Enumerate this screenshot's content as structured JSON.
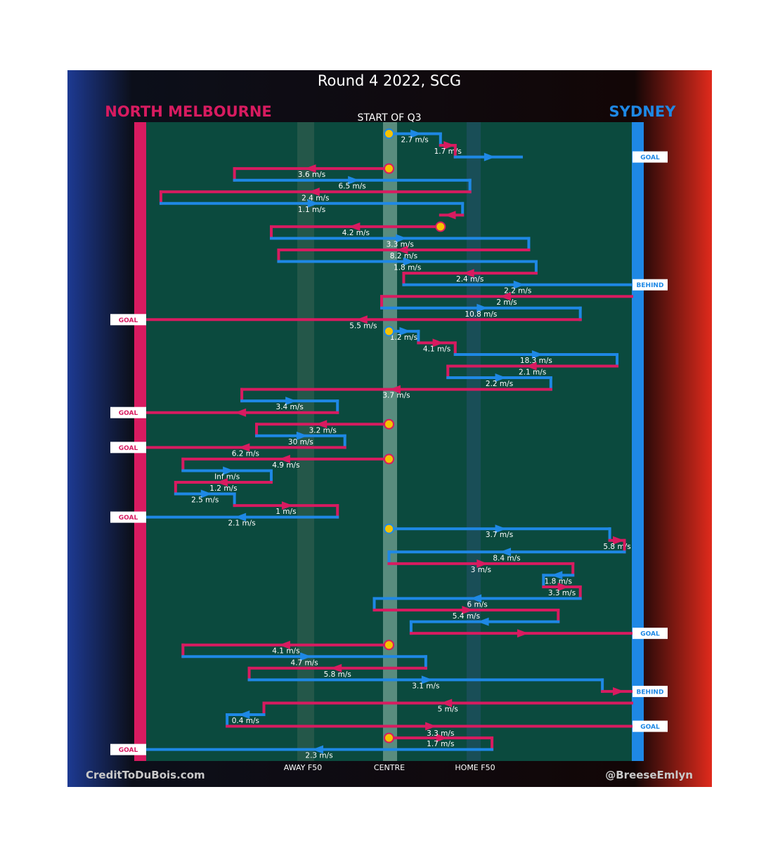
{
  "header": {
    "title": "Round 4 2022, SCG",
    "home_team": "NORTH MELBOURNE",
    "away_team": "SYDNEY",
    "subtitle": "START OF Q3"
  },
  "footer": {
    "credit_left": "CreditToDuBois.com",
    "credit_right": "@BreeseEmlyn"
  },
  "colors": {
    "north": "#d81b60",
    "sydney": "#1e88e5",
    "field": "#0b4a3e",
    "stoppage": "#f5c200"
  },
  "chart_data": {
    "type": "line",
    "x_ticks": [
      "AWAY F50",
      "CENTRE",
      "HOME F50"
    ],
    "x_tick_values": [
      0.44,
      0.5,
      0.56
    ],
    "xlim": [
      0,
      1
    ],
    "legend": [
      "NORTH MELBOURNE",
      "SYDNEY"
    ],
    "outcome_labels": [
      "GOAL",
      "BEHIND"
    ],
    "chains": [
      {
        "x": [
          0.5,
          0.57,
          0.57,
          0.59,
          0.59,
          0.68
        ],
        "y": [
          1,
          1,
          2,
          2,
          3,
          3
        ],
        "team": "sydney",
        "start": "stoppage",
        "end": "GOAL",
        "speeds": [
          "2.7 m/s",
          "1.7 m/s"
        ]
      },
      {
        "x": [
          0.5,
          0.29,
          0.29,
          0.61,
          0.61,
          0.19,
          0.19,
          0.6,
          0.6,
          0.57
        ],
        "y": [
          4,
          4,
          5,
          5,
          6,
          6,
          7,
          7,
          8,
          8
        ],
        "team": "north",
        "start": "stoppage",
        "end": "turnover",
        "speeds": [
          "3.6 m/s",
          "6.5 m/s",
          "2.4 m/s",
          "1.1 m/s"
        ]
      },
      {
        "x": [
          0.57,
          0.34,
          0.34,
          0.69,
          0.69,
          0.35,
          0.35,
          0.7,
          0.7,
          0.52,
          0.52,
          0.83
        ],
        "y": [
          9,
          9,
          10,
          10,
          11,
          11,
          12,
          12,
          13,
          13,
          14,
          14
        ],
        "team": "north",
        "start": "stoppage",
        "end": "BEHIND",
        "speeds": [
          "4.2 m/s",
          "3.3 m/s",
          "8.2 m/s",
          "1.8 m/s",
          "2.4 m/s",
          "2.2 m/s"
        ]
      },
      {
        "x": [
          0.83,
          0.49,
          0.49,
          0.76,
          0.76,
          0.17
        ],
        "y": [
          15,
          15,
          16,
          16,
          17,
          17
        ],
        "team": "north",
        "start": "kick-in",
        "end": "GOAL",
        "speeds": [
          "2 m/s",
          "10.8 m/s",
          "5.5 m/s"
        ]
      },
      {
        "x": [
          0.5,
          0.54,
          0.54,
          0.59,
          0.59,
          0.81,
          0.81,
          0.58,
          0.58,
          0.72,
          0.72,
          0.3,
          0.3,
          0.43,
          0.43,
          0.17
        ],
        "y": [
          18,
          18,
          19,
          19,
          20,
          20,
          21,
          21,
          22,
          22,
          23,
          23,
          24,
          24,
          25,
          25
        ],
        "team": "sydney",
        "start": "stoppage",
        "end": "GOAL",
        "speeds": [
          "1.2 m/s",
          "4.1 m/s",
          "18.3 m/s",
          "2.1 m/s",
          "2.2 m/s",
          "3.7 m/s",
          "3.4 m/s"
        ]
      },
      {
        "x": [
          0.5,
          0.32,
          0.32,
          0.44,
          0.44,
          0.17
        ],
        "y": [
          26,
          26,
          27,
          27,
          28,
          28
        ],
        "team": "north",
        "start": "stoppage",
        "end": "GOAL",
        "speeds": [
          "3.2 m/s",
          "30 m/s",
          "6.2 m/s"
        ]
      },
      {
        "x": [
          0.5,
          0.22,
          0.22,
          0.34,
          0.34,
          0.21,
          0.21,
          0.29,
          0.29,
          0.43,
          0.43,
          0.17
        ],
        "y": [
          29,
          29,
          30,
          30,
          31,
          31,
          32,
          32,
          33,
          33,
          34,
          34
        ],
        "team": "north",
        "start": "stoppage",
        "end": "GOAL",
        "speeds": [
          "4.9 m/s",
          "Inf m/s",
          "1.2 m/s",
          "2.5 m/s",
          "1 m/s",
          "2.1 m/s"
        ]
      },
      {
        "x": [
          0.5,
          0.8,
          0.8,
          0.82,
          0.82,
          0.5,
          0.5,
          0.75,
          0.75,
          0.71,
          0.71,
          0.76,
          0.76,
          0.48,
          0.48,
          0.73,
          0.73,
          0.53,
          0.53,
          0.83
        ],
        "y": [
          35,
          35,
          36,
          36,
          37,
          37,
          38,
          38,
          39,
          39,
          40,
          40,
          41,
          41,
          42,
          42,
          43,
          43,
          44,
          44
        ],
        "team": "sydney",
        "start": "stoppage",
        "end": "GOAL",
        "speeds": [
          "3.7 m/s",
          "5.8 m/s",
          "8.4 m/s",
          "3 m/s",
          "1.8 m/s",
          "3.3 m/s",
          "6 m/s",
          "5.4 m/s"
        ]
      },
      {
        "x": [
          0.5,
          0.22,
          0.22,
          0.55,
          0.55,
          0.31,
          0.31,
          0.79,
          0.79,
          0.83
        ],
        "y": [
          45,
          45,
          46,
          46,
          47,
          47,
          48,
          48,
          49,
          49
        ],
        "team": "north",
        "start": "stoppage",
        "end": "BEHIND",
        "speeds": [
          "4.1 m/s",
          "4.7 m/s",
          "5.8 m/s",
          "3.1 m/s"
        ]
      },
      {
        "x": [
          0.83,
          0.33,
          0.33,
          0.28,
          0.28,
          0.83
        ],
        "y": [
          50,
          50,
          51,
          51,
          52,
          52
        ],
        "team": "north",
        "start": "kick-in",
        "end": "GOAL",
        "speeds": [
          "5 m/s",
          "0.4 m/s"
        ]
      },
      {
        "x": [
          0.5,
          0.64,
          0.64,
          0.17
        ],
        "y": [
          53,
          53,
          54,
          54
        ],
        "team": "north",
        "start": "stoppage",
        "end": "GOAL",
        "speeds": [
          "1.7 m/s",
          "2.3 m/s"
        ]
      }
    ],
    "orphan_speed": "3.3 m/s"
  }
}
